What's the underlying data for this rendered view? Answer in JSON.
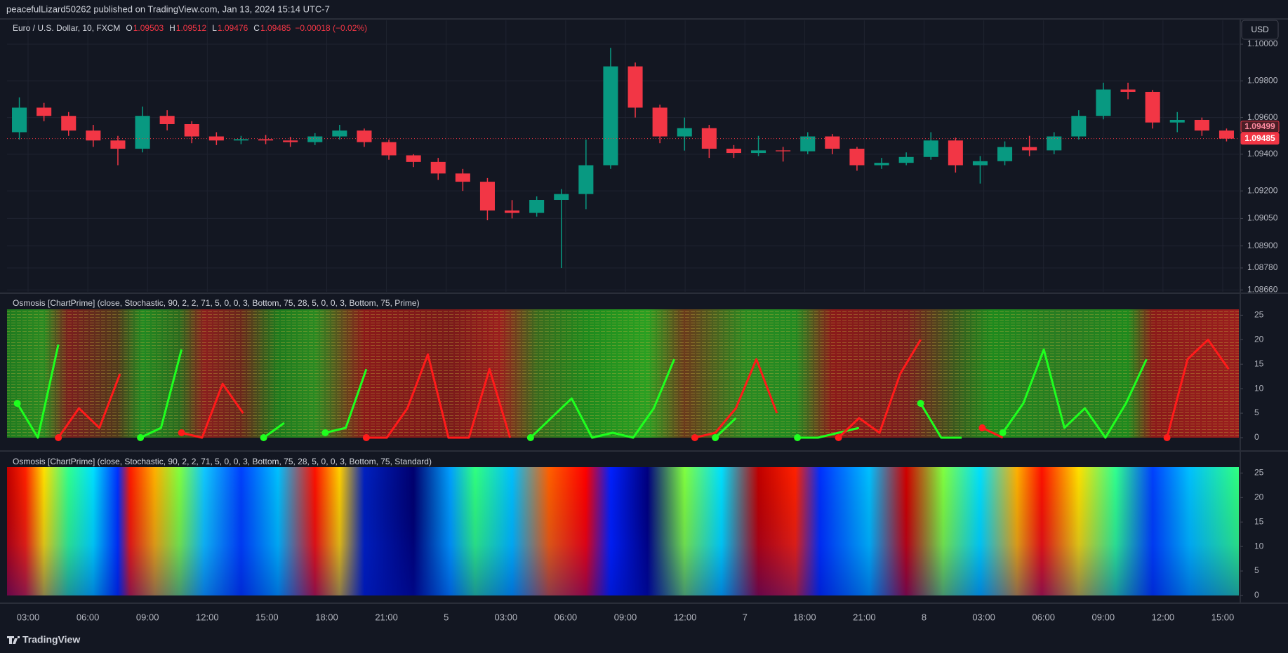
{
  "page": {
    "published": "peacefulLizard50262 published on TradingView.com, Jan 13, 2024 15:14 UTC-7",
    "currency": "USD",
    "footer": "TradingView"
  },
  "time_axis": [
    "03:00",
    "06:00",
    "09:00",
    "12:00",
    "15:00",
    "18:00",
    "21:00",
    "5",
    "03:00",
    "06:00",
    "09:00",
    "12:00",
    "7",
    "18:00",
    "21:00",
    "8",
    "03:00",
    "06:00",
    "09:00",
    "12:00",
    "15:00"
  ],
  "chart_data": [
    {
      "type": "candlestick",
      "title": "Euro / U.S. Dollar, 10, FXCM",
      "ohlc_legend": [
        {
          "label": "O",
          "value": 1.09503
        },
        {
          "label": "H",
          "value": 1.09512
        },
        {
          "label": "L",
          "value": 1.09476
        },
        {
          "label": "C",
          "value": 1.09485
        }
      ],
      "change": "−0.00018 (−0.02%)",
      "open": [
        1.0952,
        1.09654,
        1.09609,
        1.09529,
        1.09475,
        1.0943,
        1.09609,
        1.09564,
        1.09497,
        1.09475,
        1.09482,
        1.09475,
        1.09466,
        1.09497,
        1.09529,
        1.09466,
        1.09394,
        1.09358,
        1.09295,
        1.0925,
        1.09093,
        1.0908,
        1.09151,
        1.09183,
        1.0934,
        1.09879,
        1.09654,
        1.09497,
        1.09542,
        1.0943,
        1.09407,
        1.09421,
        1.09416,
        1.09497,
        1.0943,
        1.0934,
        1.09353,
        1.09385,
        1.09475,
        1.0934,
        1.09362,
        1.09439,
        1.09421,
        1.09497,
        1.09609,
        1.09753,
        1.0974,
        1.09573,
        1.09587,
        1.09529
      ],
      "high": [
        1.0971,
        1.0968,
        1.0963,
        1.0956,
        1.095,
        1.0966,
        1.0964,
        1.0958,
        1.0952,
        1.095,
        1.09505,
        1.09495,
        1.09515,
        1.0956,
        1.0954,
        1.0948,
        1.094,
        1.0938,
        1.0932,
        1.0927,
        1.0915,
        1.0917,
        1.0921,
        1.0948,
        1.0998,
        1.099,
        1.0967,
        1.096,
        1.0956,
        1.0945,
        1.095,
        1.0944,
        1.0952,
        1.0951,
        1.0944,
        1.0938,
        1.0941,
        1.0952,
        1.0949,
        1.0939,
        1.0947,
        1.095,
        1.0952,
        1.0964,
        1.0979,
        1.0979,
        1.0975,
        1.0963,
        1.096,
        1.0954
      ],
      "low": [
        1.0948,
        1.0958,
        1.095,
        1.0944,
        1.0934,
        1.0941,
        1.0953,
        1.0946,
        1.0945,
        1.09455,
        1.09455,
        1.0944,
        1.0945,
        1.0948,
        1.0944,
        1.0937,
        1.0933,
        1.0926,
        1.092,
        1.0904,
        1.0905,
        1.0906,
        1.0878,
        1.091,
        1.0932,
        1.096,
        1.0946,
        1.0942,
        1.0938,
        1.0938,
        1.0939,
        1.0936,
        1.094,
        1.094,
        1.0931,
        1.0932,
        1.0934,
        1.0937,
        1.093,
        1.0924,
        1.0934,
        1.0939,
        1.094,
        1.0948,
        1.0959,
        1.097,
        1.0954,
        1.0952,
        1.095,
        1.0947
      ],
      "close": [
        1.09654,
        1.09609,
        1.09529,
        1.09475,
        1.0943,
        1.09609,
        1.09564,
        1.09497,
        1.09475,
        1.09482,
        1.09475,
        1.09466,
        1.09497,
        1.09529,
        1.09466,
        1.09394,
        1.09358,
        1.09295,
        1.0925,
        1.09093,
        1.0908,
        1.09151,
        1.09183,
        1.0934,
        1.09879,
        1.09654,
        1.09497,
        1.09542,
        1.0943,
        1.09407,
        1.09421,
        1.09416,
        1.09497,
        1.0943,
        1.0934,
        1.09353,
        1.09385,
        1.09475,
        1.0934,
        1.09362,
        1.09439,
        1.09421,
        1.09497,
        1.09609,
        1.09753,
        1.0974,
        1.09573,
        1.09587,
        1.09529,
        1.09485
      ],
      "up_color": "#089981",
      "down_color": "#f23645",
      "ylim": [
        1.0865,
        1.1013
      ],
      "yticks": [
        {
          "value": 1.1,
          "label": "1.10000"
        },
        {
          "value": 1.098,
          "label": "1.09800"
        },
        {
          "value": 1.096,
          "label": "1.09600"
        },
        {
          "value": 1.094,
          "label": "1.09400"
        },
        {
          "value": 1.092,
          "label": "1.09200"
        },
        {
          "value": 1.0905,
          "label": "1.09050"
        },
        {
          "value": 1.089,
          "label": "1.08900"
        },
        {
          "value": 1.0878,
          "label": "1.08780"
        },
        {
          "value": 1.0866,
          "label": "1.08660"
        }
      ],
      "price_tags": [
        1.09499,
        1.09485
      ],
      "grid": true
    },
    {
      "type": "oscillator",
      "title": "Osmosis [ChartPrime] (close, Stochastic, 90, 2, 2, 71, 5, 0, 0, 3, Bottom, 75, 28, 5, 0, 0, 3, Bottom, 75, Prime)",
      "series": [
        {
          "color": "#1eff1e",
          "values": [
            7,
            0,
            19,
            null,
            null,
            null,
            0,
            2,
            18,
            null,
            null,
            null,
            0,
            3,
            null,
            1,
            2,
            14,
            null,
            null,
            null,
            null,
            null,
            null,
            null,
            0,
            4,
            8,
            0,
            1,
            0,
            6,
            16,
            null,
            0,
            4,
            null,
            null,
            0,
            0,
            1,
            2,
            null,
            null,
            7,
            0,
            0,
            null,
            1,
            7,
            18,
            2,
            6,
            0,
            7,
            16,
            null,
            null,
            null,
            null
          ]
        },
        {
          "color": "#ff1a1a",
          "values": [
            null,
            null,
            0,
            6,
            2,
            13,
            null,
            null,
            1,
            0,
            11,
            5,
            null,
            null,
            null,
            null,
            null,
            0,
            0,
            6,
            17,
            0,
            0,
            14,
            0,
            null,
            null,
            null,
            null,
            null,
            null,
            null,
            null,
            0,
            1,
            6,
            16,
            5,
            null,
            null,
            0,
            4,
            1,
            13,
            20,
            null,
            null,
            2,
            0,
            null,
            null,
            null,
            null,
            null,
            null,
            null,
            0,
            16,
            20,
            14
          ]
        }
      ],
      "ylim": [
        0,
        26.2
      ],
      "yticks": [
        0,
        5,
        10,
        15,
        20,
        25
      ],
      "grid": false
    },
    {
      "type": "heatmap",
      "title": "Osmosis [ChartPrime] (close, Stochastic, 90, 2, 2, 71, 5, 0, 0, 3, Bottom, 75, 28, 5, 0, 0, 3, Bottom, 75, Standard)",
      "ylim": [
        0,
        26.2
      ],
      "yticks": [
        0,
        5,
        10,
        15,
        20,
        25
      ],
      "grid": false
    }
  ]
}
